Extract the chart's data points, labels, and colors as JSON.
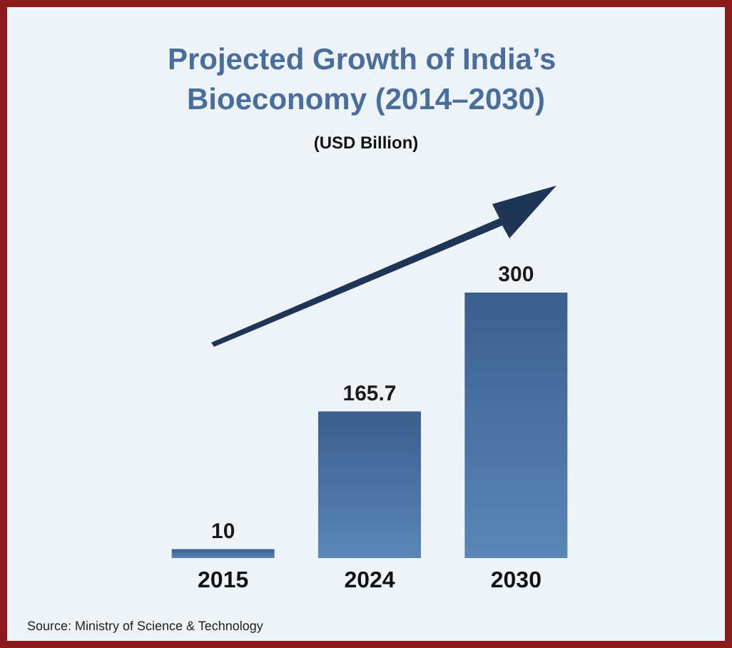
{
  "chart_data": {
    "type": "bar",
    "title": "Projected Growth of India’s Bioeconomy (2014–2030)",
    "subtitle": "(USD Billion)",
    "categories": [
      "2015",
      "2024",
      "2030"
    ],
    "values": [
      10,
      165.7,
      300
    ],
    "color": "#3b5f8f",
    "data_labels": true,
    "annotations": [
      "Source: Ministry of Science & Technology"
    ]
  }
}
